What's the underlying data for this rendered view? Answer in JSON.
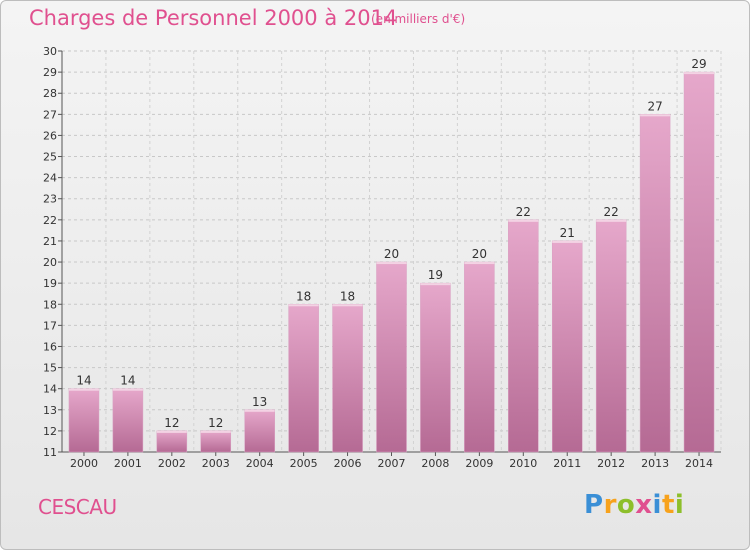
{
  "title": "Charges de Personnel 2000 à 2014",
  "subtitle": "(en milliers d'€)",
  "commune": "CESCAU",
  "logo": {
    "letters": [
      "P",
      "r",
      "o",
      "x",
      "i",
      "t",
      "i"
    ],
    "colors": [
      "#3a8fd6",
      "#f7a21c",
      "#8dbf2b",
      "#e0508f",
      "#3a8fd6",
      "#f7a21c",
      "#8dbf2b"
    ]
  },
  "colors": {
    "accent": "#e0508f",
    "bar_top": "#e6a8cb",
    "bar_bottom": "#b56a94"
  },
  "chart_data": {
    "type": "bar",
    "title": "Charges de Personnel 2000 à 2014",
    "subtitle": "(en milliers d'€)",
    "categories": [
      "2000",
      "2001",
      "2002",
      "2003",
      "2004",
      "2005",
      "2006",
      "2007",
      "2008",
      "2009",
      "2010",
      "2011",
      "2012",
      "2013",
      "2014"
    ],
    "values": [
      14,
      14,
      12,
      12,
      13,
      18,
      18,
      20,
      19,
      20,
      22,
      21,
      22,
      27,
      29
    ],
    "ylim": [
      11,
      30
    ],
    "yticks": [
      11,
      12,
      13,
      14,
      15,
      16,
      17,
      18,
      19,
      20,
      21,
      22,
      23,
      24,
      25,
      26,
      27,
      28,
      29,
      30
    ],
    "grid": true,
    "legend": "none"
  }
}
